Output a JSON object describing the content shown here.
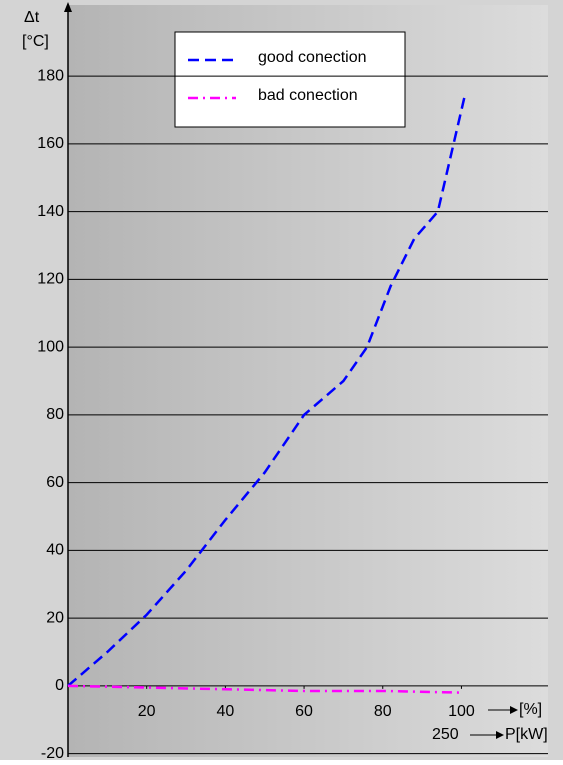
{
  "chart_data": {
    "type": "line",
    "y_label": "Δt",
    "y_unit": "[°C]",
    "x_label": "[%]",
    "x2_label": "P[kW]",
    "x2_tick": "250",
    "xlim": [
      0,
      122
    ],
    "xticks": [
      20,
      40,
      60,
      80,
      100
    ],
    "ylim": [
      -21,
      201
    ],
    "yticks": [
      -20,
      0,
      20,
      40,
      60,
      80,
      100,
      120,
      140,
      160,
      180
    ],
    "grid": true,
    "legend": "top",
    "series": [
      {
        "name": "good conection",
        "color": "#0000ff",
        "style": "dashed",
        "x": [
          0,
          10,
          20,
          30,
          40,
          50,
          60,
          70,
          76,
          82,
          88,
          94,
          98,
          101
        ],
        "values": [
          0,
          10,
          21,
          34,
          49,
          63,
          80,
          90,
          100,
          118,
          132,
          140,
          160,
          175
        ]
      },
      {
        "name": "bad conection",
        "color": "#ff00ff",
        "style": "dashdot",
        "x": [
          0,
          20,
          40,
          60,
          80,
          100
        ],
        "values": [
          0,
          -0.5,
          -1,
          -1.5,
          -1.5,
          -2
        ]
      }
    ]
  }
}
